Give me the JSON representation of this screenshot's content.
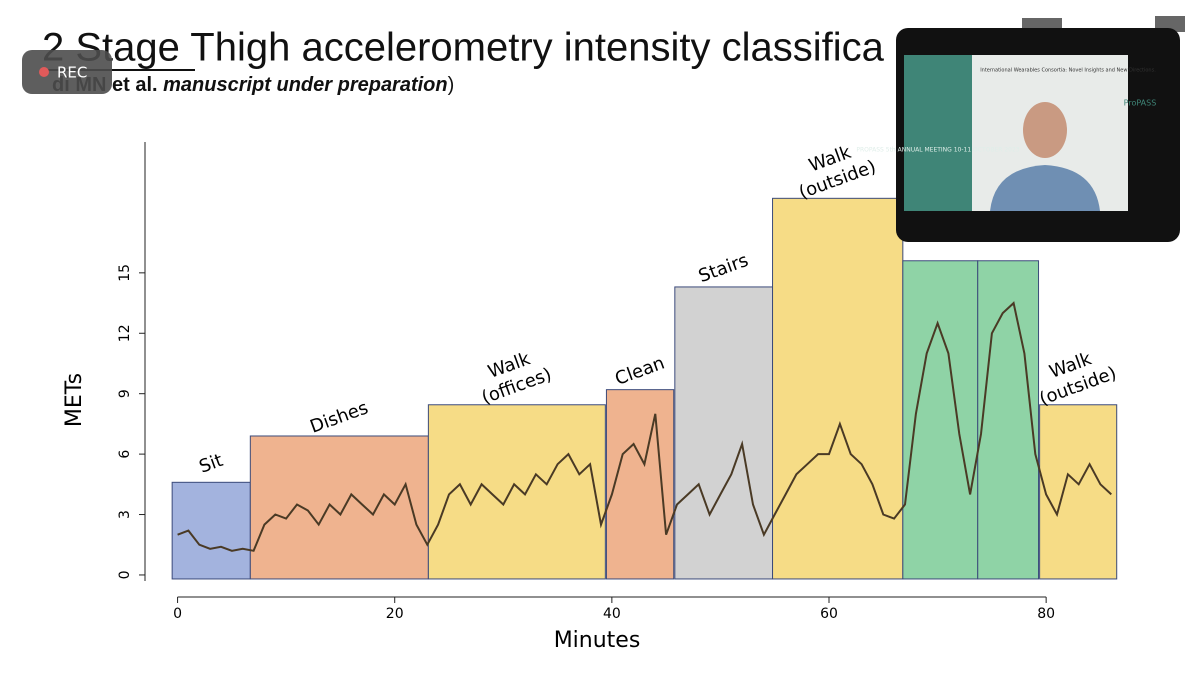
{
  "slide": {
    "title": "2 Stage Thigh accelerometry intensity classifica",
    "subtitle_prefix": "di MN et al. ",
    "subtitle_italic": "manuscript under preparation",
    "subtitle_suffix": ")"
  },
  "recording": "REC",
  "video": {
    "meeting": "PROPASS 5th ANNUAL MEETING 10-11 OCTOBER 2023",
    "headline": "International Wearables Consortia: Novel Insights and New Directions.",
    "logo": "ProPASS"
  },
  "chart_data": {
    "type": "bar",
    "x_label": "Minutes",
    "y_label": "METs",
    "xlim": [
      -3,
      88
    ],
    "xticks": [
      0,
      20,
      40,
      60,
      80
    ],
    "ylim": [
      -0.3,
      21
    ],
    "yticks": [
      0,
      3,
      6,
      9,
      12,
      15
    ],
    "activities": [
      {
        "label": [
          "Sit"
        ],
        "start": -0.5,
        "end": 6.7,
        "mets": 4.6,
        "color": "#a3b3de"
      },
      {
        "label": [
          "Dishes"
        ],
        "start": 6.7,
        "end": 23.1,
        "mets": 6.9,
        "color": "#efb38f"
      },
      {
        "label": [
          "Walk",
          "(offices)"
        ],
        "start": 23.1,
        "end": 39.4,
        "mets": 8.45,
        "color": "#f6dc86"
      },
      {
        "label": [
          "Clean"
        ],
        "start": 39.5,
        "end": 45.7,
        "mets": 9.2,
        "color": "#efb38f"
      },
      {
        "label": [
          "Stairs"
        ],
        "start": 45.8,
        "end": 54.8,
        "mets": 14.3,
        "color": "#d2d2d2"
      },
      {
        "label": [
          "Walk",
          "(outside)"
        ],
        "start": 54.8,
        "end": 66.8,
        "mets": 18.7,
        "color": "#f6dc86"
      },
      {
        "label": null,
        "start": 66.8,
        "end": 73.7,
        "mets": 15.6,
        "color": "#8fd3a6"
      },
      {
        "label": null,
        "start": 73.7,
        "end": 79.3,
        "mets": 15.6,
        "color": "#8fd3a6"
      },
      {
        "label": [
          "Walk",
          "(outside)"
        ],
        "start": 79.4,
        "end": 86.5,
        "mets": 8.45,
        "color": "#f6dc86"
      }
    ],
    "trace": {
      "color": "#4a3a25",
      "x": [
        0,
        1,
        2,
        3,
        4,
        5,
        6,
        7,
        8,
        9,
        10,
        11,
        12,
        13,
        14,
        15,
        16,
        17,
        18,
        19,
        20,
        21,
        22,
        23,
        24,
        25,
        26,
        27,
        28,
        29,
        30,
        31,
        32,
        33,
        34,
        35,
        36,
        37,
        38,
        39,
        40,
        41,
        42,
        43,
        44,
        45,
        46,
        47,
        48,
        49,
        50,
        51,
        52,
        53,
        54,
        55,
        56,
        57,
        58,
        59,
        60,
        61,
        62,
        63,
        64,
        65,
        66,
        67,
        68,
        69,
        70,
        71,
        72,
        73,
        74,
        75,
        76,
        77,
        78,
        79,
        80,
        81,
        82,
        83,
        84,
        85,
        86
      ],
      "values": [
        2.0,
        2.2,
        1.5,
        1.3,
        1.4,
        1.2,
        1.3,
        1.2,
        2.5,
        3.0,
        2.8,
        3.5,
        3.2,
        2.5,
        3.5,
        3.0,
        4.0,
        3.5,
        3.0,
        4.0,
        3.5,
        4.5,
        2.5,
        1.5,
        2.5,
        4.0,
        4.5,
        3.5,
        4.5,
        4.0,
        3.5,
        4.5,
        4.0,
        5.0,
        4.5,
        5.5,
        6.0,
        5.0,
        5.5,
        2.5,
        4.0,
        6.0,
        6.5,
        5.5,
        8.0,
        2.0,
        3.5,
        4.0,
        4.5,
        3.0,
        4.0,
        5.0,
        6.5,
        3.5,
        2.0,
        3.0,
        4.0,
        5.0,
        5.5,
        6.0,
        6.0,
        7.5,
        6.0,
        5.5,
        4.5,
        3.0,
        2.8,
        3.5,
        8.0,
        11.0,
        12.5,
        11.0,
        7.0,
        4.0,
        7.0,
        12.0,
        13.0,
        13.5,
        11.0,
        6.0,
        4.0,
        3.0,
        5.0,
        4.5,
        5.5,
        4.5,
        4.0
      ]
    }
  }
}
